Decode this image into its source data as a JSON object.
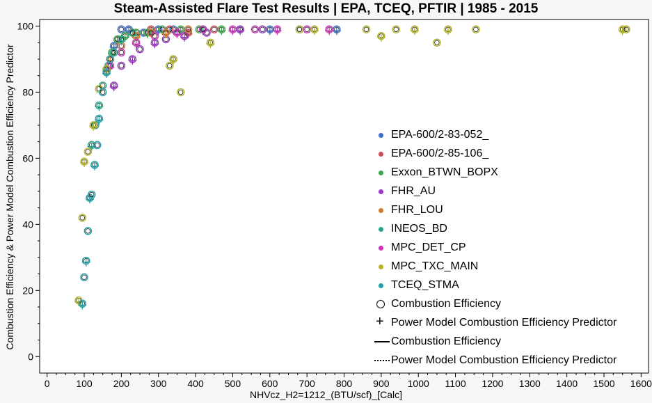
{
  "chart_data": {
    "type": "scatter",
    "title": "Steam-Assisted Flare Test Results | EPA, TCEQ, PFTIR | 1985 - 2015",
    "xlabel": "NHVcz_H2=1212_(BTU/scf)_[Calc]",
    "ylabel": "Combustion Efficiency & Power Model Combustion Efficiency Predictor",
    "xlim": [
      -20,
      1620
    ],
    "ylim": [
      -5,
      102
    ],
    "xticks": [
      0,
      100,
      200,
      300,
      400,
      500,
      600,
      700,
      800,
      900,
      1000,
      1100,
      1200,
      1300,
      1400,
      1500,
      1600
    ],
    "yticks": [
      0,
      20,
      40,
      60,
      80,
      100
    ],
    "series": [
      {
        "name": "EPA-600/2-83-052_",
        "color": "#3a6fc9",
        "x": [
          180,
          200,
          220,
          260,
          300,
          340,
          420,
          520,
          600,
          680,
          780
        ],
        "y": [
          94,
          99,
          99,
          98,
          99,
          99,
          99,
          99,
          99,
          99,
          99
        ]
      },
      {
        "name": "EPA-600/2-85-106_",
        "color": "#d04b55",
        "x": [
          190,
          230,
          280,
          330,
          380,
          450
        ],
        "y": [
          96,
          98,
          99,
          99,
          98,
          99
        ]
      },
      {
        "name": "Exxon_BTWN_BOPX",
        "color": "#3aa84c",
        "x": [
          175,
          190,
          210,
          240,
          270,
          310,
          360,
          410,
          470
        ],
        "y": [
          92,
          96,
          97,
          98,
          98,
          99,
          99,
          99,
          99
        ]
      },
      {
        "name": "FHR_AU",
        "color": "#9b36c9",
        "x": [
          180,
          200,
          230,
          250,
          290,
          320,
          370,
          430,
          520,
          580
        ],
        "y": [
          82,
          88,
          90,
          93,
          95,
          96,
          97,
          98,
          99,
          99
        ]
      },
      {
        "name": "FHR_LOU",
        "color": "#d17a2e",
        "x": [
          170,
          200,
          240,
          280,
          320,
          380
        ],
        "y": [
          90,
          94,
          97,
          98,
          98,
          99
        ]
      },
      {
        "name": "INEOS_BD",
        "color": "#2aa68a",
        "x": [
          120,
          130,
          140,
          150,
          165,
          180,
          200,
          230
        ],
        "y": [
          64,
          70,
          76,
          82,
          88,
          92,
          96,
          98
        ]
      },
      {
        "name": "MPC_DET_CP",
        "color": "#cc33bb",
        "x": [
          170,
          200,
          240,
          290,
          350,
          420,
          500,
          560,
          620,
          700,
          760
        ],
        "y": [
          88,
          92,
          95,
          97,
          98,
          99,
          99,
          99,
          99,
          99,
          99
        ]
      },
      {
        "name": "MPC_TXC_MAIN",
        "color": "#b5b52a",
        "x": [
          85,
          95,
          100,
          110,
          125,
          140,
          160,
          330,
          340,
          360,
          440,
          680,
          720,
          860,
          900,
          940,
          990,
          1050,
          1080,
          1155,
          1550,
          1560
        ],
        "y": [
          17,
          42,
          59,
          62,
          70,
          81,
          87,
          88,
          90,
          80,
          95,
          99,
          99,
          99,
          97,
          99,
          99,
          95,
          99,
          99,
          99,
          99
        ]
      },
      {
        "name": "TCEQ_STMA",
        "color": "#23a0a8",
        "x": [
          95,
          100,
          105,
          110,
          115,
          120,
          128,
          135,
          140,
          150,
          160,
          170
        ],
        "y": [
          16,
          24,
          29,
          38,
          48,
          49,
          58,
          64,
          72,
          80,
          86,
          90
        ]
      }
    ],
    "legend_extra": [
      "Combustion Efficiency",
      "Power Model Combustion Efficiency Predictor",
      "Combustion Efficiency",
      "Power Model Combustion Efficiency Predictor"
    ],
    "legend_placement": "center-right"
  }
}
